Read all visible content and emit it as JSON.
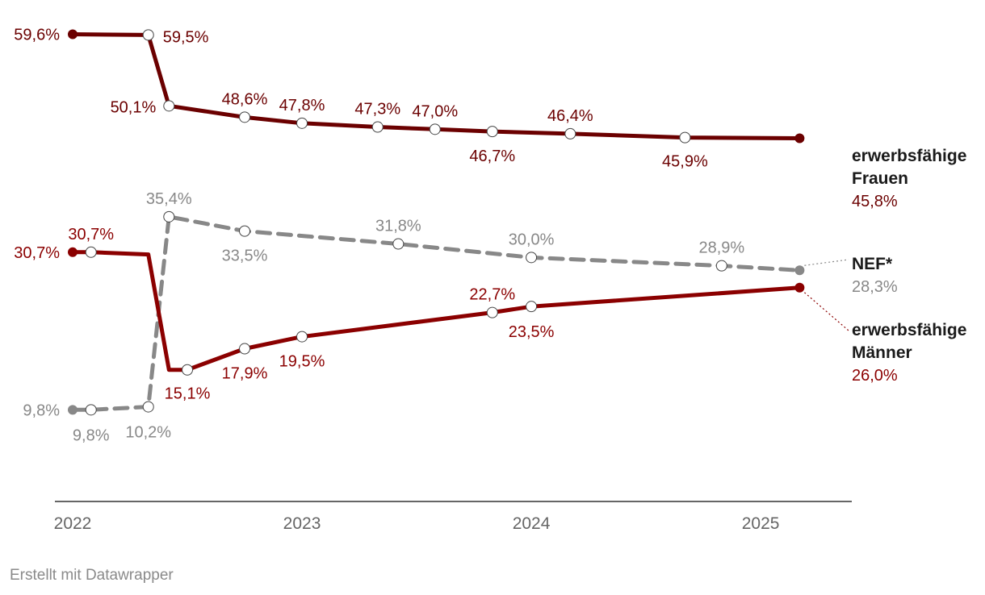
{
  "credit": "Erstellt mit Datawrapper",
  "colors": {
    "frauen": "#6b0000",
    "maenner": "#8b0000",
    "nef": "#888888",
    "axis": "#333333",
    "tick": "#666666"
  },
  "chart_data": {
    "type": "line",
    "title": "",
    "xlabel": "",
    "ylabel": "",
    "x_ticks": [
      "2022",
      "2023",
      "2024",
      "2025"
    ],
    "x_range": [
      2022.0,
      2025.32
    ],
    "ylim": [
      0,
      62
    ],
    "grid": false,
    "series": [
      {
        "id": "frauen",
        "name_lines": [
          "erwerbsfähige",
          "Frauen"
        ],
        "end_label": "45,8%",
        "style": "solid",
        "points": [
          {
            "x": 2022.0,
            "y": 59.6,
            "label": "59,6%"
          },
          {
            "x": 2022.33,
            "y": 59.5,
            "label": "59,5%"
          },
          {
            "x": 2022.42,
            "y": 50.1,
            "label": "50,1%"
          },
          {
            "x": 2022.75,
            "y": 48.6,
            "label": "48,6%"
          },
          {
            "x": 2023.0,
            "y": 47.8,
            "label": "47,8%"
          },
          {
            "x": 2023.33,
            "y": 47.3,
            "label": "47,3%"
          },
          {
            "x": 2023.58,
            "y": 47.0,
            "label": "47,0%"
          },
          {
            "x": 2023.83,
            "y": 46.7,
            "label": "46,7%"
          },
          {
            "x": 2024.17,
            "y": 46.4,
            "label": "46,4%"
          },
          {
            "x": 2024.67,
            "y": 45.9,
            "label": "45,9%"
          },
          {
            "x": 2025.17,
            "y": 45.8,
            "label": ""
          }
        ]
      },
      {
        "id": "nef",
        "name_lines": [
          "NEF*"
        ],
        "end_label": "28,3%",
        "style": "dashed",
        "points": [
          {
            "x": 2022.0,
            "y": 9.8,
            "label": "9,8%"
          },
          {
            "x": 2022.08,
            "y": 9.8,
            "label": "9,8%"
          },
          {
            "x": 2022.33,
            "y": 10.2,
            "label": "10,2%"
          },
          {
            "x": 2022.42,
            "y": 35.4,
            "label": "35,4%"
          },
          {
            "x": 2022.75,
            "y": 33.5,
            "label": "33,5%"
          },
          {
            "x": 2023.42,
            "y": 31.8,
            "label": "31,8%"
          },
          {
            "x": 2024.0,
            "y": 30.0,
            "label": "30,0%"
          },
          {
            "x": 2024.83,
            "y": 28.9,
            "label": "28,9%"
          },
          {
            "x": 2025.17,
            "y": 28.3,
            "label": ""
          }
        ]
      },
      {
        "id": "maenner",
        "name_lines": [
          "erwerbsfähige",
          "Männer"
        ],
        "end_label": "26,0%",
        "style": "solid",
        "points": [
          {
            "x": 2022.0,
            "y": 30.7,
            "label": "30,7%"
          },
          {
            "x": 2022.08,
            "y": 30.7,
            "label": "30,7%"
          },
          {
            "x": 2022.33,
            "y": 30.4,
            "label": ""
          },
          {
            "x": 2022.42,
            "y": 15.1,
            "label": ""
          },
          {
            "x": 2022.5,
            "y": 15.1,
            "label": "15,1%"
          },
          {
            "x": 2022.75,
            "y": 17.9,
            "label": "17,9%"
          },
          {
            "x": 2023.0,
            "y": 19.5,
            "label": "19,5%"
          },
          {
            "x": 2023.83,
            "y": 22.7,
            "label": "22,7%"
          },
          {
            "x": 2024.0,
            "y": 23.5,
            "label": "23,5%"
          },
          {
            "x": 2025.17,
            "y": 26.0,
            "label": ""
          }
        ]
      }
    ]
  }
}
